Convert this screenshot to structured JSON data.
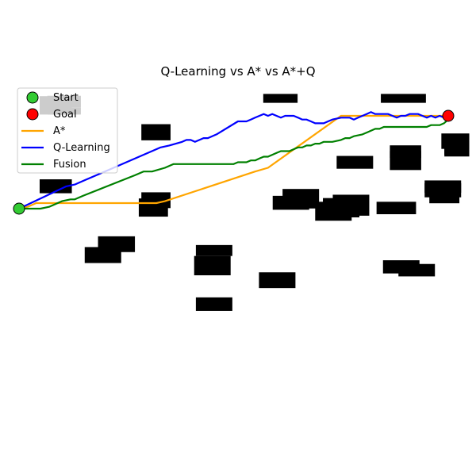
{
  "chart_data": {
    "type": "line",
    "title": "Q-Learning vs A* vs A*+Q",
    "xlabel": "",
    "ylabel": "",
    "xlim": [
      0,
      100
    ],
    "ylim": [
      0,
      100
    ],
    "axes_visible": false,
    "grid": false,
    "legend_position": "top-left",
    "start": {
      "label": "Start",
      "x": 0,
      "y": 50,
      "color": "#33cc33"
    },
    "goal": {
      "label": "Goal",
      "x": 100,
      "y": 100,
      "color": "#ff0000"
    },
    "obstacles": [
      [
        4.8,
        58.3,
        12.3,
        65.8
      ],
      [
        27.9,
        45.7,
        34.7,
        55.5
      ],
      [
        28.5,
        50.3,
        35.3,
        58.8
      ],
      [
        28.5,
        86.8,
        35.3,
        95.5
      ],
      [
        15.3,
        20.7,
        23.8,
        29.3
      ],
      [
        18.4,
        26.6,
        27.0,
        35.1
      ],
      [
        40.8,
        14.1,
        49.3,
        24.5
      ],
      [
        41.2,
        24.5,
        49.7,
        30.4
      ],
      [
        41.2,
        -5.1,
        49.7,
        2.2
      ],
      [
        55.9,
        7.2,
        64.4,
        15.7
      ],
      [
        59.1,
        49.4,
        67.6,
        56.9
      ],
      [
        61.4,
        50.1,
        69.9,
        60.6
      ],
      [
        62.3,
        52.6,
        67.6,
        58.2
      ],
      [
        69.0,
        43.5,
        77.5,
        53.7
      ],
      [
        70.8,
        45.3,
        79.3,
        55.7
      ],
      [
        73.1,
        46.2,
        81.6,
        57.5
      ],
      [
        74.0,
        71.5,
        82.5,
        78.4
      ],
      [
        83.3,
        47.0,
        92.5,
        53.7
      ],
      [
        84.8,
        15.1,
        93.3,
        22.2
      ],
      [
        86.4,
        70.8,
        93.7,
        81.1
      ],
      [
        86.4,
        77.3,
        93.7,
        84.1
      ],
      [
        88.4,
        13.5,
        96.9,
        20.2
      ],
      [
        94.5,
        56.1,
        103.0,
        63.7
      ],
      [
        94.5,
        58.6,
        103.0,
        65.2
      ],
      [
        95.6,
        52.9,
        102.6,
        60.3
      ],
      [
        99.1,
        79.0,
        103.0,
        82.8
      ],
      [
        99.1,
        78.1,
        104.9,
        86.3
      ],
      [
        98.4,
        82.2,
        104.9,
        90.5
      ],
      [
        4.8,
        100.7,
        12.3,
        110.6
      ],
      [
        6.6,
        100.7,
        14.4,
        104.6
      ],
      [
        6.6,
        104.6,
        14.4,
        110.8
      ],
      [
        56.9,
        107.0,
        64.9,
        111.8
      ],
      [
        84.3,
        107.0,
        94.8,
        111.8
      ]
    ],
    "series": [
      {
        "name": "A*",
        "color": "#ffa500",
        "x": [
          0,
          2,
          4,
          32,
          34,
          55,
          58,
          75,
          78,
          100
        ],
        "y": [
          50,
          51,
          53,
          53,
          54,
          70,
          72,
          100,
          100,
          100
        ]
      },
      {
        "name": "Q-Learning",
        "color": "#0000ff",
        "x": [
          0,
          11,
          13,
          15,
          20,
          33,
          35,
          38,
          39,
          40,
          41,
          43,
          44,
          46,
          51,
          53,
          54,
          55,
          56,
          57,
          58,
          59,
          60,
          61,
          62,
          63,
          64,
          65,
          66,
          67,
          68,
          69,
          70,
          71,
          72,
          73,
          75,
          77,
          78,
          79,
          80,
          81,
          82,
          83,
          84,
          85,
          86,
          87,
          88,
          89,
          90,
          91,
          92,
          93,
          94,
          95,
          96,
          97,
          98,
          99,
          100
        ],
        "y": [
          50,
          62,
          63,
          65,
          70,
          83,
          84,
          86,
          87,
          87,
          86,
          88,
          88,
          90,
          97,
          97,
          98,
          99,
          100,
          101,
          100,
          101,
          100,
          99,
          100,
          100,
          100,
          99,
          98,
          98,
          97,
          96,
          96,
          96,
          97,
          98,
          99,
          99,
          98,
          99,
          100,
          101,
          102,
          101,
          101,
          101,
          101,
          100,
          99,
          100,
          100,
          101,
          101,
          101,
          100,
          99,
          100,
          99,
          100,
          99,
          100
        ]
      },
      {
        "name": "Fusion",
        "color": "#008000",
        "x": [
          0,
          5,
          7,
          10,
          12,
          13,
          15,
          27,
          29,
          31,
          34,
          36,
          39,
          50,
          51,
          53,
          54,
          55,
          56,
          57,
          58,
          59,
          60,
          61,
          62,
          63,
          64,
          65,
          66,
          67,
          68,
          69,
          70,
          71,
          72,
          73,
          75,
          76,
          77,
          78,
          80,
          81,
          82,
          83,
          84,
          85,
          86,
          87,
          88,
          89,
          90,
          91,
          92,
          93,
          94,
          95,
          96,
          97,
          98,
          99,
          100
        ],
        "y": [
          50,
          50,
          51,
          54,
          55,
          55,
          57,
          68,
          70,
          70,
          72,
          74,
          74,
          74,
          75,
          75,
          76,
          76,
          77,
          78,
          78,
          79,
          80,
          81,
          81,
          81,
          82,
          83,
          83,
          84,
          84,
          85,
          85,
          86,
          86,
          86,
          87,
          88,
          88,
          89,
          90,
          91,
          92,
          93,
          93,
          94,
          94,
          94,
          94,
          94,
          94,
          94,
          94,
          94,
          94,
          94,
          95,
          95,
          95,
          96,
          98
        ]
      }
    ]
  }
}
